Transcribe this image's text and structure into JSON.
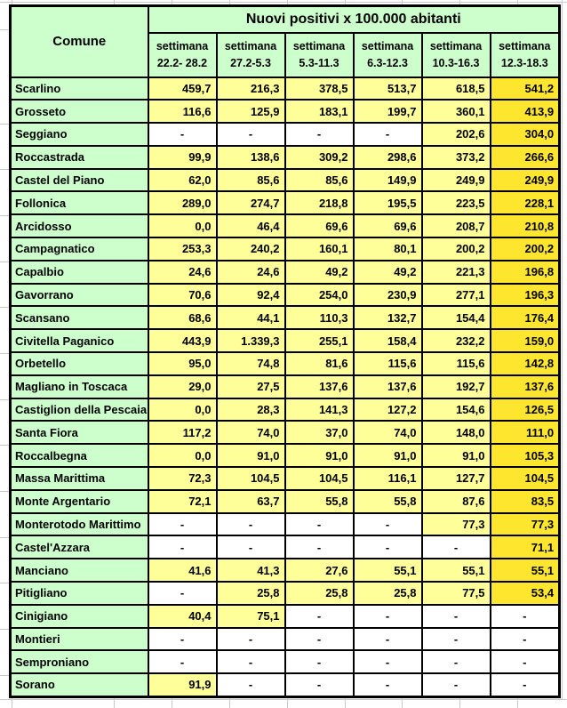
{
  "colors": {
    "header_green": "#ccffcc",
    "cell_yellow": "#ffff99",
    "last_column_gold": "#ffe62e",
    "empty_white": "#ffffff",
    "border_black": "#000000"
  },
  "chart_data": {
    "type": "table",
    "title": "Nuovi positivi x 100.000 abitanti",
    "corner_header": "Comune",
    "column_subheader_line1": "settimana",
    "columns": [
      "22.2- 28.2",
      "27.2-5.3",
      "5.3-11.3",
      "6.3-12.3",
      "10.3-16.3",
      "12.3-18.3"
    ],
    "missing_marker": "-",
    "rows": [
      {
        "comune": "Scarlino",
        "values": [
          "459,7",
          "216,3",
          "378,5",
          "513,7",
          "618,5",
          "541,2"
        ]
      },
      {
        "comune": "Grosseto",
        "values": [
          "116,6",
          "125,9",
          "183,1",
          "199,7",
          "360,1",
          "413,9"
        ]
      },
      {
        "comune": "Seggiano",
        "values": [
          "-",
          "-",
          "-",
          "-",
          "202,6",
          "304,0"
        ]
      },
      {
        "comune": "Roccastrada",
        "values": [
          "99,9",
          "138,6",
          "309,2",
          "298,6",
          "373,2",
          "266,6"
        ]
      },
      {
        "comune": "Castel del Piano",
        "values": [
          "62,0",
          "85,6",
          "85,6",
          "149,9",
          "249,9",
          "249,9"
        ]
      },
      {
        "comune": "Follonica",
        "values": [
          "289,0",
          "274,7",
          "218,8",
          "195,5",
          "223,5",
          "228,1"
        ]
      },
      {
        "comune": "Arcidosso",
        "values": [
          "0,0",
          "46,4",
          "69,6",
          "69,6",
          "208,7",
          "210,8"
        ]
      },
      {
        "comune": "Campagnatico",
        "values": [
          "253,3",
          "240,2",
          "160,1",
          "80,1",
          "200,2",
          "200,2"
        ]
      },
      {
        "comune": "Capalbio",
        "values": [
          "24,6",
          "24,6",
          "49,2",
          "49,2",
          "221,3",
          "196,8"
        ]
      },
      {
        "comune": "Gavorrano",
        "values": [
          "70,6",
          "92,4",
          "254,0",
          "230,9",
          "277,1",
          "196,3"
        ]
      },
      {
        "comune": "Scansano",
        "values": [
          "68,6",
          "44,1",
          "110,3",
          "132,7",
          "154,4",
          "176,4"
        ]
      },
      {
        "comune": "Civitella Paganico",
        "values": [
          "443,9",
          "1.339,3",
          "255,1",
          "158,4",
          "232,2",
          "159,0"
        ]
      },
      {
        "comune": "Orbetello",
        "values": [
          "95,0",
          "74,8",
          "81,6",
          "115,6",
          "115,6",
          "142,8"
        ]
      },
      {
        "comune": "Magliano in Toscaca",
        "values": [
          "29,0",
          "27,5",
          "137,6",
          "137,6",
          "192,7",
          "137,6"
        ]
      },
      {
        "comune": "Castiglion della Pescaia",
        "values": [
          "0,0",
          "28,3",
          "141,3",
          "127,2",
          "154,6",
          "126,5"
        ]
      },
      {
        "comune": "Santa Fiora",
        "values": [
          "117,2",
          "74,0",
          "37,0",
          "74,0",
          "148,0",
          "111,0"
        ]
      },
      {
        "comune": "Roccalbegna",
        "values": [
          "0,0",
          "91,0",
          "91,0",
          "91,0",
          "91,0",
          "105,3"
        ]
      },
      {
        "comune": "Massa Marittima",
        "values": [
          "72,3",
          "104,5",
          "104,5",
          "116,1",
          "127,7",
          "104,5"
        ]
      },
      {
        "comune": "Monte Argentario",
        "values": [
          "72,1",
          "63,7",
          "55,8",
          "55,8",
          "87,6",
          "83,5"
        ]
      },
      {
        "comune": "Monterotodo Marittimo",
        "values": [
          "-",
          "-",
          "-",
          "-",
          "77,3",
          "77,3"
        ]
      },
      {
        "comune": "Castel'Azzara",
        "values": [
          "-",
          "-",
          "-",
          "-",
          "-",
          "71,1"
        ]
      },
      {
        "comune": "Manciano",
        "values": [
          "41,6",
          "41,3",
          "27,6",
          "55,1",
          "55,1",
          "55,1"
        ]
      },
      {
        "comune": "Pitigliano",
        "values": [
          "-",
          "25,8",
          "25,8",
          "25,8",
          "77,5",
          "53,4"
        ]
      },
      {
        "comune": "Cinigiano",
        "values": [
          "40,4",
          "75,1",
          "-",
          "-",
          "-",
          "-"
        ]
      },
      {
        "comune": "Montieri",
        "values": [
          "-",
          "-",
          "-",
          "-",
          "-",
          "-"
        ]
      },
      {
        "comune": "Semproniano",
        "values": [
          "-",
          "-",
          "-",
          "-",
          "-",
          "-"
        ]
      },
      {
        "comune": "Sorano",
        "values": [
          "91,9",
          "-",
          "-",
          "-",
          "-",
          "-"
        ]
      }
    ]
  }
}
